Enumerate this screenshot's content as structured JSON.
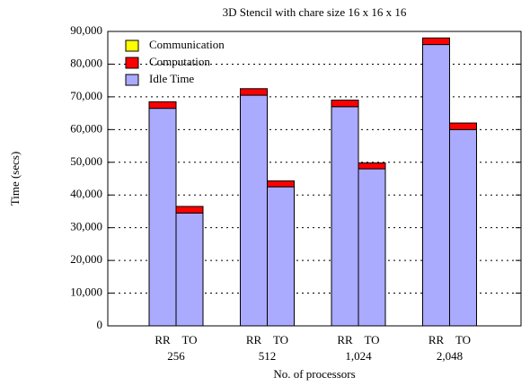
{
  "chart_data": {
    "type": "bar",
    "stacked": true,
    "title": "3D Stencil with chare size 16 x 16 x 16",
    "xlabel": "No. of processors",
    "ylabel": "Time (secs)",
    "groups": [
      "256",
      "512",
      "1,024",
      "2,048"
    ],
    "categories": [
      "RR",
      "TO",
      "RR",
      "TO",
      "RR",
      "TO",
      "RR",
      "TO"
    ],
    "series": [
      {
        "name": "Idle Time",
        "color": "#aaaaff",
        "values": [
          66500,
          34500,
          70500,
          42500,
          67000,
          48000,
          86000,
          60000
        ]
      },
      {
        "name": "Computation",
        "color": "#ff0000",
        "values": [
          2000,
          2000,
          2000,
          1800,
          2000,
          1800,
          2000,
          2000
        ]
      },
      {
        "name": "Communication",
        "color": "#ffff00",
        "values": [
          0,
          0,
          0,
          0,
          0,
          0,
          0,
          0
        ]
      }
    ],
    "legend_order": [
      2,
      1,
      0
    ],
    "ylim": [
      0,
      90000
    ],
    "yticks": [
      0,
      {
        "value": 10000,
        "label": "10,000"
      },
      {
        "value": 20000,
        "label": "20,000"
      },
      {
        "value": 30000,
        "label": "30,000"
      },
      {
        "value": 40000,
        "label": "40,000"
      },
      {
        "value": 50000,
        "label": "50,000"
      },
      {
        "value": 60000,
        "label": "60,000"
      },
      {
        "value": 70000,
        "label": "70,000"
      },
      {
        "value": 80000,
        "label": "80,000"
      },
      {
        "value": 90000,
        "label": "90,000"
      }
    ],
    "grid": true,
    "legend": "upper left"
  }
}
